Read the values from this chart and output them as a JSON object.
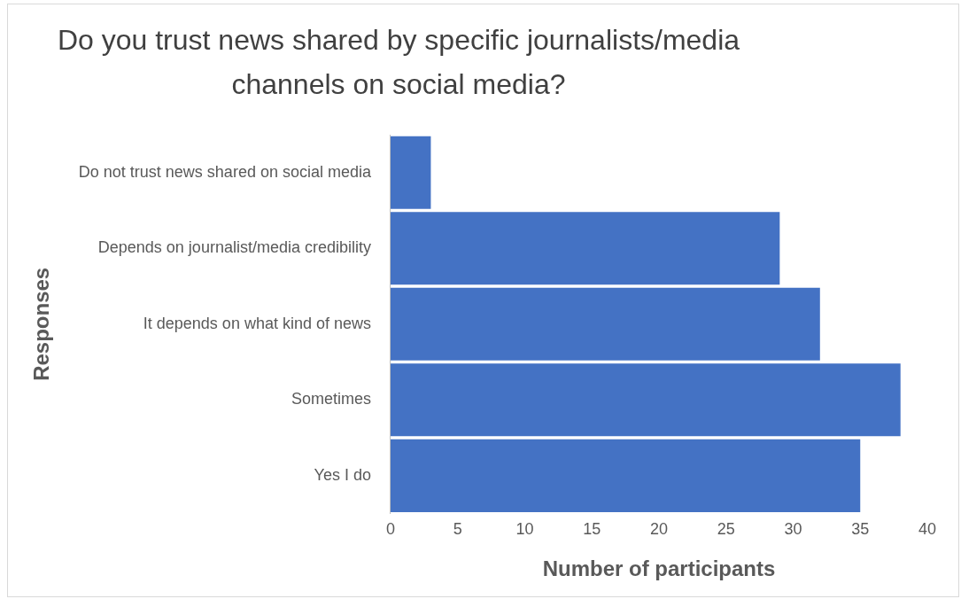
{
  "chart_data": {
    "type": "bar",
    "orientation": "horizontal",
    "title": "Do you trust news shared by specific journalists/media channels on social media?",
    "xlabel": "Number of participants",
    "ylabel": "Responses",
    "categories": [
      "Do not trust news shared on social media",
      "Depends on journalist/media credibility",
      "It depends on what kind of news",
      "Sometimes",
      "Yes I do"
    ],
    "values": [
      3,
      29,
      32,
      38,
      35
    ],
    "color": "#4472c4",
    "xlim": [
      0,
      40
    ],
    "xticks": [
      0,
      5,
      10,
      15,
      20,
      25,
      30,
      35,
      40
    ],
    "grid": false,
    "legend": false
  }
}
